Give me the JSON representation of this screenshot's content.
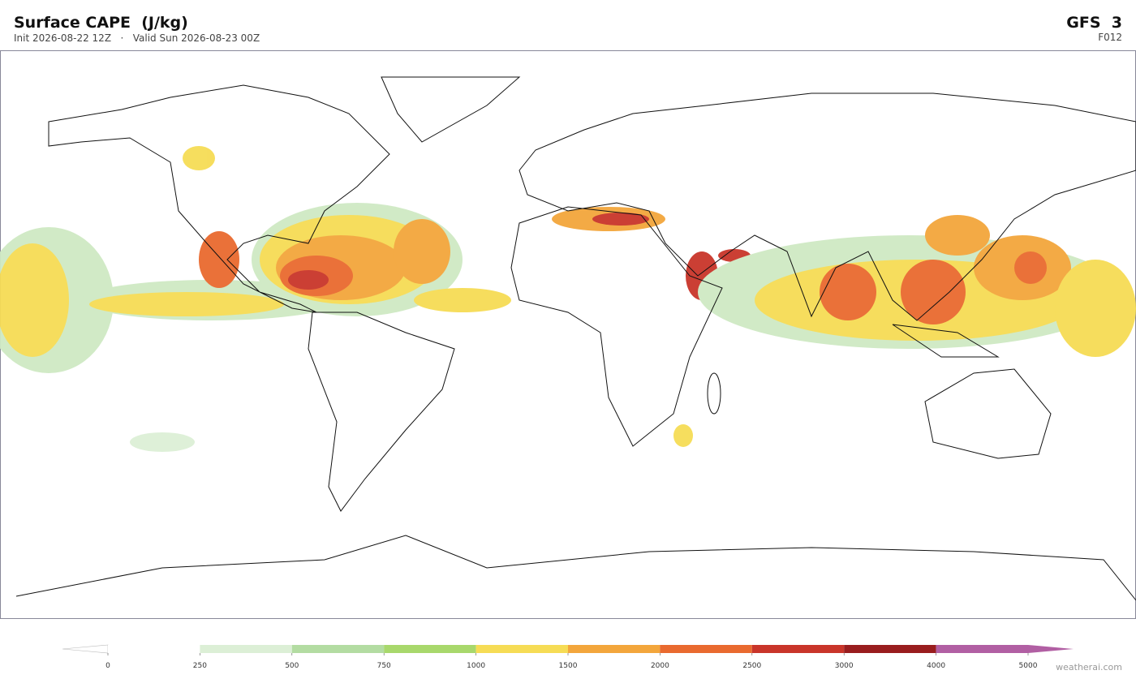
{
  "header": {
    "title": "Surface CAPE  (J/kg)",
    "subtitle": "Init 2026-08-22 12Z   ·   Valid Sun 2026-08-23 00Z",
    "model": "GFS  3",
    "forecast_hour": "F012"
  },
  "colorbar": {
    "levels": [
      0,
      250,
      500,
      750,
      1000,
      1500,
      2000,
      2500,
      3000,
      4000,
      5000
    ],
    "colors": [
      "#ffffff",
      "#dcefd6",
      "#b3dca2",
      "#a8d86c",
      "#f6dc55",
      "#f3a63c",
      "#e96a2f",
      "#c9352a",
      "#991d1e",
      "#b15fa3"
    ],
    "under_color": "#ffffff",
    "over_color": "#b15fa3"
  },
  "footer": {
    "watermark": "weatherai.com"
  }
}
